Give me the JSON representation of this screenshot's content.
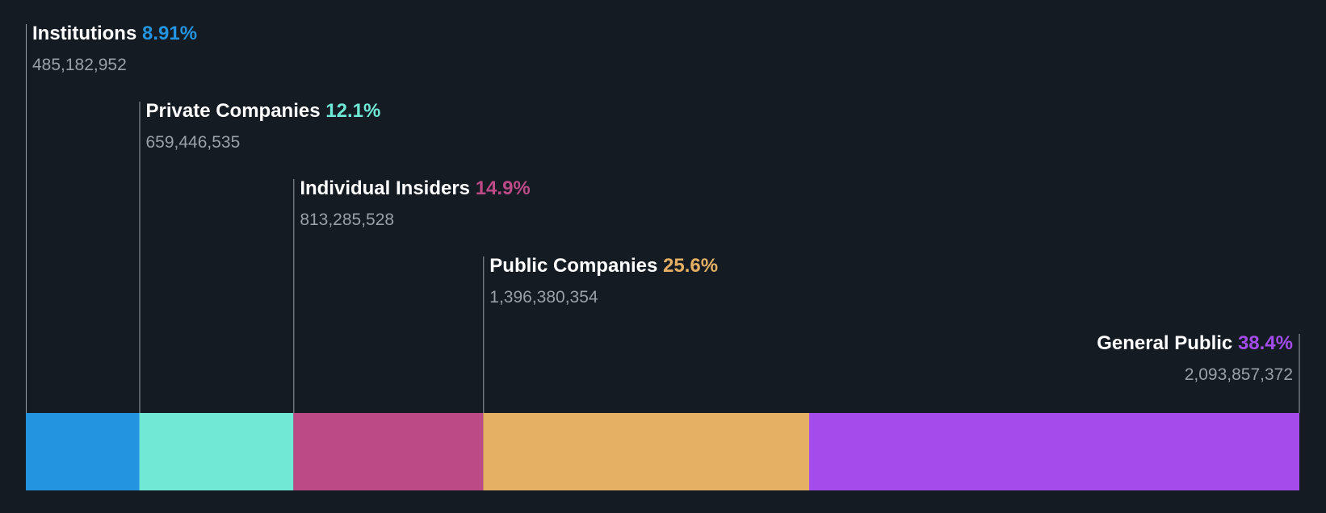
{
  "chart_data": {
    "type": "bar",
    "orientation": "horizontal-stacked",
    "title": "",
    "xlabel": "",
    "ylabel": "",
    "xlim": [
      0,
      100
    ],
    "categories": [
      "Institutions",
      "Private Companies",
      "Individual Insiders",
      "Public Companies",
      "General Public"
    ],
    "percent_labels": [
      "8.91%",
      "12.1%",
      "14.9%",
      "25.6%",
      "38.4%"
    ],
    "share_labels": [
      "485,182,952",
      "659,446,535",
      "813,285,528",
      "1,396,380,354",
      "2,093,857,372"
    ],
    "values": [
      8.91,
      12.1,
      14.9,
      25.6,
      38.4
    ],
    "shares": [
      485182952,
      659446535,
      813285528,
      1396380354,
      2093857372
    ],
    "colors": [
      "#2394df",
      "#6fe8d6",
      "#bb4a86",
      "#e5b064",
      "#a44ceb"
    ]
  }
}
